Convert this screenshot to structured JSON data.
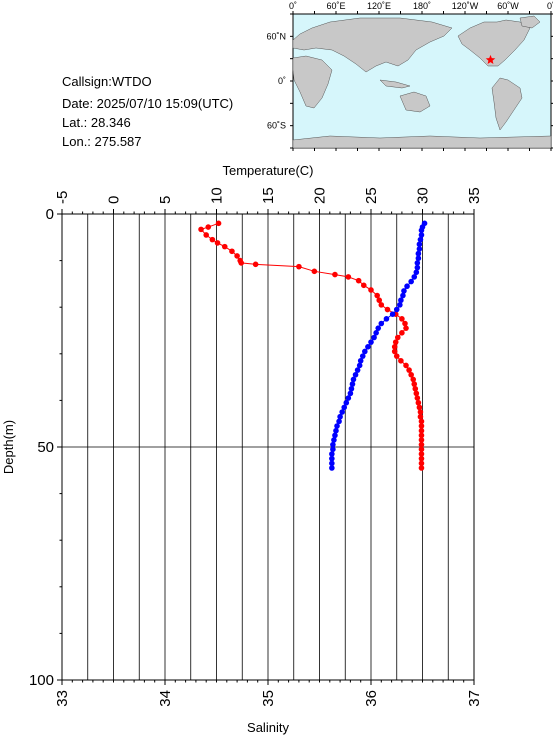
{
  "station": {
    "callsign": "Callsign:WTDO",
    "date": "Date:  2025/07/10 15:09(UTC)",
    "lat": "Lat.:  28.346",
    "lon": "Lon.:  275.587"
  },
  "map": {
    "top_labels": [
      "0˚",
      "60˚E",
      "120˚E",
      "180˚",
      "120˚W",
      "60˚W",
      "0˚"
    ],
    "left_labels": [
      "60˚N",
      "0˚",
      "60˚S"
    ],
    "ocean_color": "#d6f6fb",
    "land_color": "#c8c8c8",
    "marker": {
      "lon": 275.587,
      "lat": 28.346,
      "color": "#ff0000",
      "icon": "star-icon"
    }
  },
  "chart_data": {
    "type": "scatter",
    "top_axis": {
      "label": "Temperature(C)",
      "range": [
        -5,
        35
      ],
      "ticks": [
        -5,
        0,
        5,
        10,
        15,
        20,
        25,
        30,
        35
      ]
    },
    "bottom_axis": {
      "label": "Salinity",
      "range": [
        33,
        37
      ],
      "ticks": [
        33,
        34,
        35,
        36,
        37
      ]
    },
    "left_axis": {
      "label": "Depth(m)",
      "range": [
        0,
        100
      ],
      "ticks": [
        0,
        50,
        100
      ],
      "inverted": true
    },
    "grid": true,
    "series": [
      {
        "quantity": "temperature",
        "axis": "top",
        "color": "#ff0000",
        "connected": true,
        "points": [
          [
            10.2,
            2.0
          ],
          [
            9.2,
            2.8
          ],
          [
            8.5,
            3.3
          ],
          [
            9.0,
            4.5
          ],
          [
            9.6,
            5.5
          ],
          [
            10.1,
            6.2
          ],
          [
            10.8,
            7.0
          ],
          [
            11.5,
            8.0
          ],
          [
            12.0,
            9.0
          ],
          [
            12.3,
            10.0
          ],
          [
            12.4,
            10.5
          ],
          [
            13.8,
            10.8
          ],
          [
            18.0,
            11.3
          ],
          [
            19.5,
            12.3
          ],
          [
            21.5,
            13.0
          ],
          [
            22.8,
            13.5
          ],
          [
            23.8,
            14.3
          ],
          [
            24.3,
            15.3
          ],
          [
            25.0,
            16.3
          ],
          [
            25.6,
            17.5
          ],
          [
            25.8,
            18.5
          ],
          [
            26.0,
            19.5
          ],
          [
            26.6,
            20.5
          ],
          [
            27.4,
            21.5
          ],
          [
            28.0,
            22.5
          ],
          [
            28.3,
            23.5
          ],
          [
            28.4,
            24.5
          ],
          [
            28.0,
            25.5
          ],
          [
            27.6,
            26.5
          ],
          [
            27.4,
            27.5
          ],
          [
            27.3,
            28.5
          ],
          [
            27.3,
            29.5
          ],
          [
            27.5,
            30.5
          ],
          [
            27.9,
            31.5
          ],
          [
            28.4,
            32.5
          ],
          [
            28.7,
            33.5
          ],
          [
            28.9,
            34.5
          ],
          [
            29.1,
            35.5
          ],
          [
            29.2,
            36.5
          ],
          [
            29.3,
            37.5
          ],
          [
            29.4,
            38.5
          ],
          [
            29.5,
            39.5
          ],
          [
            29.6,
            40.5
          ],
          [
            29.7,
            41.5
          ],
          [
            29.8,
            42.5
          ],
          [
            29.8,
            43.5
          ],
          [
            29.9,
            44.5
          ],
          [
            29.9,
            45.5
          ],
          [
            29.9,
            46.5
          ],
          [
            29.9,
            47.5
          ],
          [
            29.9,
            48.5
          ],
          [
            29.9,
            49.5
          ],
          [
            29.9,
            50.5
          ],
          [
            29.9,
            51.5
          ],
          [
            29.9,
            52.5
          ],
          [
            29.9,
            53.5
          ],
          [
            29.9,
            54.5
          ]
        ]
      },
      {
        "quantity": "salinity",
        "axis": "bottom",
        "color": "#0000ff",
        "connected": true,
        "points": [
          [
            36.52,
            2.0
          ],
          [
            36.5,
            2.8
          ],
          [
            36.49,
            3.5
          ],
          [
            36.49,
            4.5
          ],
          [
            36.48,
            5.5
          ],
          [
            36.47,
            6.5
          ],
          [
            36.47,
            7.5
          ],
          [
            36.46,
            8.5
          ],
          [
            36.46,
            9.5
          ],
          [
            36.45,
            10.5
          ],
          [
            36.45,
            11.5
          ],
          [
            36.44,
            12.5
          ],
          [
            36.42,
            13.5
          ],
          [
            36.39,
            14.5
          ],
          [
            36.35,
            15.5
          ],
          [
            36.32,
            16.5
          ],
          [
            36.31,
            17.5
          ],
          [
            36.29,
            18.5
          ],
          [
            36.28,
            19.5
          ],
          [
            36.25,
            20.5
          ],
          [
            36.21,
            21.5
          ],
          [
            36.15,
            22.5
          ],
          [
            36.1,
            23.5
          ],
          [
            36.07,
            24.5
          ],
          [
            36.05,
            25.5
          ],
          [
            36.03,
            26.5
          ],
          [
            36.0,
            27.5
          ],
          [
            35.97,
            28.5
          ],
          [
            35.94,
            29.5
          ],
          [
            35.92,
            30.5
          ],
          [
            35.9,
            31.5
          ],
          [
            35.89,
            32.5
          ],
          [
            35.87,
            33.5
          ],
          [
            35.85,
            34.5
          ],
          [
            35.83,
            35.5
          ],
          [
            35.82,
            36.5
          ],
          [
            35.81,
            37.5
          ],
          [
            35.8,
            38.5
          ],
          [
            35.78,
            39.5
          ],
          [
            35.76,
            40.5
          ],
          [
            35.74,
            41.5
          ],
          [
            35.72,
            42.5
          ],
          [
            35.7,
            43.5
          ],
          [
            35.69,
            44.5
          ],
          [
            35.67,
            45.5
          ],
          [
            35.66,
            46.5
          ],
          [
            35.65,
            47.5
          ],
          [
            35.64,
            48.5
          ],
          [
            35.63,
            49.5
          ],
          [
            35.63,
            50.5
          ],
          [
            35.62,
            51.5
          ],
          [
            35.62,
            52.5
          ],
          [
            35.62,
            53.5
          ],
          [
            35.62,
            54.5
          ]
        ]
      }
    ]
  }
}
